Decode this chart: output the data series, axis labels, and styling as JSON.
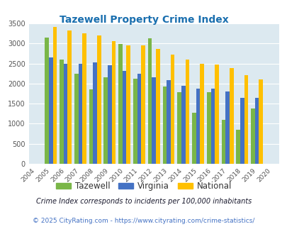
{
  "title": "Tazewell Property Crime Index",
  "years": [
    2004,
    2005,
    2006,
    2007,
    2008,
    2009,
    2010,
    2011,
    2012,
    2013,
    2014,
    2015,
    2016,
    2017,
    2018,
    2019,
    2020
  ],
  "tazewell": [
    null,
    3150,
    2600,
    2250,
    1850,
    2150,
    2980,
    2130,
    3120,
    1920,
    1790,
    1280,
    1790,
    1100,
    840,
    1380,
    null
  ],
  "virginia": [
    null,
    2650,
    2490,
    2490,
    2530,
    2460,
    2320,
    2250,
    2150,
    2080,
    1940,
    1870,
    1870,
    1800,
    1650,
    1640,
    null
  ],
  "national": [
    null,
    3420,
    3320,
    3250,
    3200,
    3050,
    2960,
    2950,
    2860,
    2720,
    2590,
    2490,
    2480,
    2380,
    2210,
    2110,
    null
  ],
  "tazewell_color": "#7ab648",
  "virginia_color": "#4472c4",
  "national_color": "#ffc000",
  "plot_bg": "#dce9f0",
  "ylim": [
    0,
    3500
  ],
  "yticks": [
    0,
    500,
    1000,
    1500,
    2000,
    2500,
    3000,
    3500
  ],
  "legend_labels": [
    "Tazewell",
    "Virginia",
    "National"
  ],
  "footnote1": "Crime Index corresponds to incidents per 100,000 inhabitants",
  "footnote2": "© 2025 CityRating.com - https://www.cityrating.com/crime-statistics/",
  "title_color": "#1a6faf",
  "footnote1_color": "#1a1a2e",
  "footnote2_color": "#4472c4"
}
